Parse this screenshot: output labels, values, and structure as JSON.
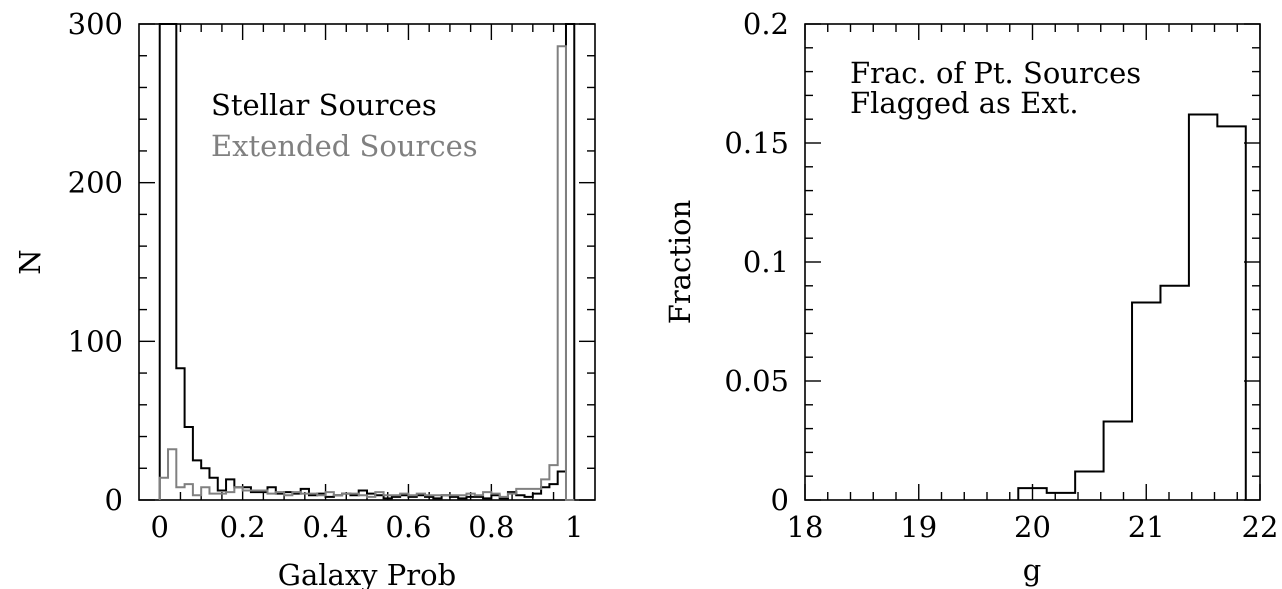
{
  "chart_data": [
    {
      "type": "histogram",
      "xlabel": "Galaxy Prob",
      "ylabel": "N",
      "xlim": [
        -0.05,
        1.05
      ],
      "ylim": [
        0,
        300
      ],
      "xticks": [
        0,
        0.2,
        0.4,
        0.6,
        0.8,
        1
      ],
      "xtick_labels": [
        "0",
        "0.2",
        "0.4",
        "0.6",
        "0.8",
        "1"
      ],
      "yticks": [
        0,
        100,
        200,
        300
      ],
      "ytick_labels": [
        "0",
        "100",
        "200",
        "300"
      ],
      "bin_edges": [
        0,
        0.02,
        0.04,
        0.06,
        0.08,
        0.1,
        0.12,
        0.14,
        0.16,
        0.18,
        0.2,
        0.22,
        0.24,
        0.26,
        0.28,
        0.3,
        0.32,
        0.34,
        0.36,
        0.38,
        0.4,
        0.42,
        0.44,
        0.46,
        0.48,
        0.5,
        0.52,
        0.54,
        0.56,
        0.58,
        0.6,
        0.62,
        0.64,
        0.66,
        0.68,
        0.7,
        0.72,
        0.74,
        0.76,
        0.78,
        0.8,
        0.82,
        0.84,
        0.86,
        0.88,
        0.9,
        0.92,
        0.94,
        0.96,
        0.98,
        1.0
      ],
      "series": [
        {
          "name": "Stellar Sources",
          "color": "#000000",
          "values": [
            300,
            300,
            83,
            46,
            25,
            20,
            14,
            6,
            13,
            8,
            8,
            5,
            5,
            8,
            4,
            5,
            4,
            7,
            3,
            4,
            2,
            3,
            4,
            3,
            6,
            4,
            3,
            1,
            2,
            3,
            2,
            3,
            2,
            1,
            3,
            2,
            1,
            2,
            2,
            1,
            3,
            1,
            5,
            3,
            2,
            4,
            8,
            10,
            18,
            300
          ]
        },
        {
          "name": "Extended Sources",
          "color": "#808080",
          "values": [
            14,
            32,
            8,
            10,
            3,
            8,
            4,
            4,
            5,
            8,
            6,
            6,
            6,
            4,
            5,
            3,
            5,
            4,
            4,
            3,
            5,
            3,
            4,
            4,
            3,
            2,
            5,
            3,
            3,
            4,
            3,
            4,
            3,
            3,
            3,
            3,
            3,
            4,
            3,
            5,
            4,
            2,
            4,
            7,
            7,
            7,
            13,
            22,
            286,
            0
          ]
        }
      ],
      "legend": {
        "position": "top-left",
        "entries": [
          "Stellar Sources",
          "Extended Sources"
        ]
      }
    },
    {
      "type": "histogram",
      "xlabel": "g",
      "ylabel": "Fraction",
      "xlim": [
        18,
        22
      ],
      "ylim": [
        0,
        0.2
      ],
      "xticks": [
        18,
        19,
        20,
        21,
        22
      ],
      "xtick_labels": [
        "18",
        "19",
        "20",
        "21",
        "22"
      ],
      "yticks": [
        0,
        0.05,
        0.1,
        0.15,
        0.2
      ],
      "ytick_labels": [
        "0",
        "0.05",
        "0.1",
        "0.15",
        "0.2"
      ],
      "bin_edges": [
        19.875,
        20.125,
        20.375,
        20.625,
        20.875,
        21.125,
        21.375,
        21.625,
        21.875
      ],
      "values": [
        0.005,
        0.003,
        0.012,
        0.033,
        0.083,
        0.09,
        0.162,
        0.157
      ],
      "annotation": [
        "Frac. of Pt. Sources",
        "Flagged as Ext."
      ]
    }
  ]
}
